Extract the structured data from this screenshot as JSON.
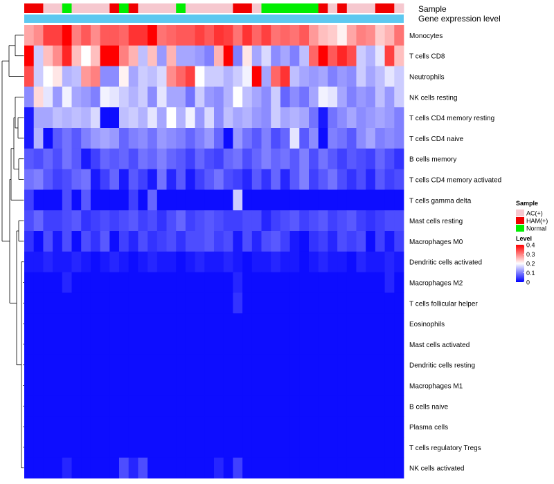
{
  "chart_data": {
    "type": "heatmap",
    "title": "",
    "annotation_tracks": [
      "Sample",
      "Gene expression level"
    ],
    "legend_sample": {
      "title": "Sample",
      "entries": [
        {
          "label": "AC(+)",
          "color": "#F6C8CF"
        },
        {
          "label": "HAM(+)",
          "color": "#F00000"
        },
        {
          "label": "Normal",
          "color": "#00EE00"
        }
      ]
    },
    "legend_level": {
      "title": "Level",
      "ticks": [
        "0.4",
        "0.3",
        "0.2",
        "0.1",
        "0"
      ],
      "min": 0,
      "max": 0.4,
      "color_low": "#0000FF",
      "color_mid": "#FFFFFF",
      "color_high": "#FF0000"
    },
    "gene_expression_color": "#5DC8F0",
    "sample_groups": [
      "HAM(+)",
      "HAM(+)",
      "AC(+)",
      "AC(+)",
      "Normal",
      "AC(+)",
      "AC(+)",
      "AC(+)",
      "AC(+)",
      "HAM(+)",
      "Normal",
      "HAM(+)",
      "AC(+)",
      "AC(+)",
      "AC(+)",
      "AC(+)",
      "Normal",
      "AC(+)",
      "AC(+)",
      "AC(+)",
      "AC(+)",
      "AC(+)",
      "HAM(+)",
      "HAM(+)",
      "AC(+)",
      "Normal",
      "Normal",
      "Normal",
      "Normal",
      "Normal",
      "Normal",
      "HAM(+)",
      "AC(+)",
      "HAM(+)",
      "AC(+)",
      "AC(+)",
      "AC(+)",
      "HAM(+)",
      "HAM(+)",
      "AC(+)"
    ],
    "rows": [
      "Monocytes",
      "T cells CD8",
      "Neutrophils",
      "NK cells resting",
      "T cells CD4 memory resting",
      "T cells CD4 naive",
      "B cells memory",
      "T cells CD4 memory activated",
      "T cells gamma delta",
      "Mast cells resting",
      "Macrophages M0",
      "Dendritic cells activated",
      "Macrophages M2",
      "T cells follicular helper",
      "Eosinophils",
      "Mast cells activated",
      "Dendritic cells resting",
      "Macrophages M1",
      "B cells naive",
      "Plasma cells",
      "T cells regulatory  Tregs",
      "NK cells activated"
    ],
    "values": [
      [
        0.27,
        0.29,
        0.35,
        0.35,
        0.4,
        0.3,
        0.33,
        0.29,
        0.33,
        0.33,
        0.32,
        0.36,
        0.36,
        0.4,
        0.31,
        0.32,
        0.33,
        0.33,
        0.35,
        0.33,
        0.36,
        0.35,
        0.31,
        0.36,
        0.32,
        0.35,
        0.31,
        0.32,
        0.31,
        0.33,
        0.28,
        0.25,
        0.24,
        0.21,
        0.27,
        0.3,
        0.29,
        0.24,
        0.26,
        0.31
      ],
      [
        0.4,
        0.16,
        0.25,
        0.29,
        0.37,
        0.25,
        0.2,
        0.25,
        0.4,
        0.4,
        0.3,
        0.26,
        0.15,
        0.25,
        0.12,
        0.26,
        0.13,
        0.13,
        0.12,
        0.1,
        0.26,
        0.4,
        0.1,
        0.22,
        0.13,
        0.17,
        0.11,
        0.13,
        0.1,
        0.15,
        0.32,
        0.4,
        0.33,
        0.37,
        0.34,
        0.16,
        0.14,
        0.18,
        0.35,
        0.25
      ],
      [
        0.34,
        0.16,
        0.2,
        0.22,
        0.14,
        0.15,
        0.28,
        0.3,
        0.11,
        0.11,
        0.21,
        0.13,
        0.16,
        0.15,
        0.17,
        0.29,
        0.32,
        0.35,
        0.2,
        0.16,
        0.16,
        0.14,
        0.16,
        0.19,
        0.4,
        0.13,
        0.32,
        0.36,
        0.15,
        0.13,
        0.12,
        0.13,
        0.1,
        0.12,
        0.11,
        0.16,
        0.13,
        0.15,
        0.18,
        0.16
      ],
      [
        0.11,
        0.23,
        0.18,
        0.12,
        0.19,
        0.13,
        0.12,
        0.1,
        0.19,
        0.18,
        0.16,
        0.14,
        0.16,
        0.11,
        0.18,
        0.13,
        0.13,
        0.09,
        0.16,
        0.12,
        0.11,
        0.14,
        0.2,
        0.15,
        0.13,
        0.11,
        0.16,
        0.08,
        0.11,
        0.09,
        0.13,
        0.19,
        0.18,
        0.13,
        0.1,
        0.12,
        0.11,
        0.15,
        0.12,
        0.16
      ],
      [
        0.02,
        0.13,
        0.13,
        0.15,
        0.14,
        0.15,
        0.14,
        0.17,
        0.01,
        0.01,
        0.15,
        0.16,
        0.14,
        0.18,
        0.13,
        0.2,
        0.14,
        0.19,
        0.12,
        0.17,
        0.11,
        0.15,
        0.13,
        0.14,
        0.12,
        0.11,
        0.16,
        0.13,
        0.14,
        0.13,
        0.09,
        0.02,
        0.09,
        0.11,
        0.13,
        0.11,
        0.12,
        0.13,
        0.12,
        0.1
      ],
      [
        0.02,
        0.14,
        0.01,
        0.07,
        0.09,
        0.07,
        0.1,
        0.12,
        0.13,
        0.12,
        0.08,
        0.1,
        0.11,
        0.09,
        0.12,
        0.11,
        0.1,
        0.08,
        0.1,
        0.12,
        0.08,
        0.01,
        0.12,
        0.09,
        0.07,
        0.1,
        0.06,
        0.08,
        0.18,
        0.07,
        0.11,
        0.01,
        0.1,
        0.09,
        0.07,
        0.11,
        0.13,
        0.1,
        0.11,
        0.1
      ],
      [
        0.07,
        0.06,
        0.08,
        0.06,
        0.09,
        0.07,
        0.02,
        0.05,
        0.08,
        0.07,
        0.08,
        0.06,
        0.09,
        0.08,
        0.1,
        0.08,
        0.07,
        0.05,
        0.08,
        0.06,
        0.05,
        0.08,
        0.09,
        0.06,
        0.08,
        0.1,
        0.08,
        0.09,
        0.07,
        0.1,
        0.06,
        0.09,
        0.07,
        0.05,
        0.07,
        0.06,
        0.05,
        0.08,
        0.06,
        0.04
      ],
      [
        0.09,
        0.1,
        0.07,
        0.05,
        0.06,
        0.08,
        0.09,
        0.02,
        0.05,
        0.08,
        0.02,
        0.07,
        0.05,
        0.02,
        0.09,
        0.03,
        0.07,
        0.02,
        0.05,
        0.07,
        0.09,
        0.06,
        0.05,
        0.03,
        0.07,
        0.04,
        0.08,
        0.03,
        0.07,
        0.1,
        0.05,
        0.07,
        0.09,
        0.06,
        0.04,
        0.06,
        0.03,
        0.07,
        0.05,
        0.06
      ],
      [
        0.05,
        0.01,
        0.01,
        0.01,
        0.06,
        0.01,
        0.07,
        0.01,
        0.01,
        0.01,
        0.01,
        0.05,
        0.01,
        0.08,
        0.01,
        0.01,
        0.01,
        0.01,
        0.01,
        0.01,
        0.01,
        0.01,
        0.16,
        0.01,
        0.01,
        0.01,
        0.01,
        0.01,
        0.01,
        0.01,
        0.01,
        0.01,
        0.01,
        0.01,
        0.01,
        0.01,
        0.01,
        0.01,
        0.01,
        0.01
      ],
      [
        0.06,
        0.08,
        0.05,
        0.05,
        0.06,
        0.07,
        0.04,
        0.05,
        0.06,
        0.05,
        0.06,
        0.07,
        0.05,
        0.06,
        0.04,
        0.06,
        0.08,
        0.05,
        0.06,
        0.07,
        0.06,
        0.05,
        0.05,
        0.06,
        0.06,
        0.03,
        0.05,
        0.06,
        0.07,
        0.05,
        0.06,
        0.07,
        0.05,
        0.06,
        0.07,
        0.05,
        0.04,
        0.05,
        0.06,
        0.06
      ],
      [
        0.04,
        0.01,
        0.06,
        0.02,
        0.06,
        0.01,
        0.06,
        0.04,
        0.07,
        0.01,
        0.05,
        0.03,
        0.06,
        0.04,
        0.05,
        0.06,
        0.04,
        0.06,
        0.06,
        0.07,
        0.05,
        0.06,
        0.02,
        0.06,
        0.03,
        0.06,
        0.07,
        0.05,
        0.02,
        0.01,
        0.04,
        0.05,
        0.03,
        0.06,
        0.05,
        0.06,
        0.01,
        0.05,
        0.02,
        0.05
      ],
      [
        0.02,
        0.02,
        0.03,
        0.02,
        0.02,
        0.03,
        0.02,
        0.01,
        0.02,
        0.03,
        0.02,
        0.01,
        0.02,
        0.03,
        0.02,
        0.02,
        0.01,
        0.02,
        0.03,
        0.02,
        0.02,
        0.03,
        0.02,
        0.01,
        0.02,
        0.02,
        0.03,
        0.02,
        0.02,
        0.01,
        0.02,
        0.03,
        0.02,
        0.02,
        0.01,
        0.03,
        0.02,
        0.02,
        0.03,
        0.02
      ],
      [
        0.01,
        0.01,
        0.01,
        0.01,
        0.03,
        0.01,
        0.01,
        0.01,
        0.01,
        0.01,
        0.01,
        0.01,
        0.01,
        0.01,
        0.01,
        0.01,
        0.01,
        0.01,
        0.01,
        0.01,
        0.01,
        0.01,
        0.03,
        0.01,
        0.01,
        0.01,
        0.01,
        0.01,
        0.01,
        0.01,
        0.01,
        0.01,
        0.01,
        0.01,
        0.01,
        0.01,
        0.01,
        0.01,
        0.03,
        0.01
      ],
      [
        0.01,
        0.01,
        0.01,
        0.01,
        0.01,
        0.01,
        0.01,
        0.01,
        0.01,
        0.01,
        0.01,
        0.01,
        0.01,
        0.01,
        0.01,
        0.01,
        0.01,
        0.01,
        0.01,
        0.01,
        0.01,
        0.01,
        0.04,
        0.01,
        0.01,
        0.01,
        0.01,
        0.01,
        0.01,
        0.01,
        0.01,
        0.01,
        0.01,
        0.01,
        0.01,
        0.01,
        0.01,
        0.01,
        0.01,
        0.01
      ],
      [
        0.01,
        0.01,
        0.01,
        0.01,
        0.01,
        0.01,
        0.01,
        0.01,
        0.01,
        0.01,
        0.01,
        0.01,
        0.01,
        0.01,
        0.01,
        0.01,
        0.01,
        0.01,
        0.01,
        0.01,
        0.01,
        0.01,
        0.01,
        0.01,
        0.01,
        0.01,
        0.01,
        0.01,
        0.01,
        0.01,
        0.01,
        0.01,
        0.01,
        0.01,
        0.01,
        0.01,
        0.01,
        0.01,
        0.01,
        0.01
      ],
      [
        0.01,
        0.01,
        0.01,
        0.01,
        0.01,
        0.01,
        0.01,
        0.01,
        0.01,
        0.01,
        0.01,
        0.01,
        0.01,
        0.01,
        0.01,
        0.01,
        0.01,
        0.01,
        0.01,
        0.01,
        0.01,
        0.01,
        0.01,
        0.01,
        0.01,
        0.01,
        0.01,
        0.01,
        0.01,
        0.01,
        0.01,
        0.01,
        0.01,
        0.01,
        0.01,
        0.01,
        0.01,
        0.01,
        0.01,
        0.01
      ],
      [
        0.01,
        0.01,
        0.01,
        0.01,
        0.01,
        0.01,
        0.01,
        0.01,
        0.01,
        0.01,
        0.01,
        0.01,
        0.01,
        0.01,
        0.01,
        0.01,
        0.01,
        0.01,
        0.01,
        0.01,
        0.01,
        0.01,
        0.01,
        0.01,
        0.01,
        0.01,
        0.01,
        0.01,
        0.01,
        0.01,
        0.01,
        0.01,
        0.01,
        0.01,
        0.01,
        0.01,
        0.01,
        0.01,
        0.01,
        0.01
      ],
      [
        0.01,
        0.01,
        0.01,
        0.01,
        0.01,
        0.01,
        0.01,
        0.01,
        0.01,
        0.01,
        0.01,
        0.01,
        0.01,
        0.01,
        0.01,
        0.01,
        0.01,
        0.01,
        0.01,
        0.01,
        0.01,
        0.01,
        0.01,
        0.01,
        0.01,
        0.01,
        0.01,
        0.01,
        0.01,
        0.01,
        0.01,
        0.01,
        0.01,
        0.01,
        0.01,
        0.01,
        0.01,
        0.01,
        0.01,
        0.01
      ],
      [
        0.01,
        0.01,
        0.01,
        0.01,
        0.01,
        0.01,
        0.01,
        0.01,
        0.01,
        0.01,
        0.01,
        0.01,
        0.01,
        0.01,
        0.01,
        0.01,
        0.01,
        0.01,
        0.01,
        0.01,
        0.01,
        0.01,
        0.01,
        0.01,
        0.01,
        0.01,
        0.01,
        0.01,
        0.01,
        0.01,
        0.01,
        0.01,
        0.01,
        0.01,
        0.01,
        0.01,
        0.01,
        0.01,
        0.01,
        0.01
      ],
      [
        0.01,
        0.01,
        0.01,
        0.01,
        0.01,
        0.01,
        0.01,
        0.01,
        0.01,
        0.01,
        0.01,
        0.01,
        0.01,
        0.01,
        0.01,
        0.01,
        0.01,
        0.01,
        0.01,
        0.01,
        0.01,
        0.01,
        0.01,
        0.01,
        0.01,
        0.01,
        0.01,
        0.01,
        0.01,
        0.01,
        0.01,
        0.01,
        0.01,
        0.01,
        0.01,
        0.01,
        0.01,
        0.01,
        0.01,
        0.01
      ],
      [
        0.01,
        0.01,
        0.01,
        0.01,
        0.01,
        0.01,
        0.01,
        0.01,
        0.01,
        0.01,
        0.01,
        0.01,
        0.01,
        0.01,
        0.01,
        0.01,
        0.01,
        0.01,
        0.01,
        0.01,
        0.01,
        0.01,
        0.01,
        0.01,
        0.01,
        0.01,
        0.01,
        0.01,
        0.01,
        0.01,
        0.01,
        0.01,
        0.01,
        0.01,
        0.01,
        0.01,
        0.01,
        0.01,
        0.01,
        0.01
      ],
      [
        0.01,
        0.01,
        0.01,
        0.01,
        0.03,
        0.01,
        0.01,
        0.01,
        0.01,
        0.01,
        0.06,
        0.03,
        0.06,
        0.01,
        0.01,
        0.01,
        0.01,
        0.01,
        0.01,
        0.01,
        0.03,
        0.01,
        0.05,
        0.01,
        0.01,
        0.01,
        0.01,
        0.01,
        0.01,
        0.01,
        0.01,
        0.01,
        0.01,
        0.01,
        0.01,
        0.01,
        0.01,
        0.01,
        0.01,
        0.01
      ]
    ]
  }
}
